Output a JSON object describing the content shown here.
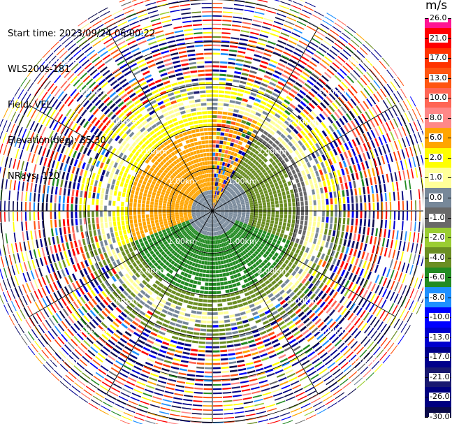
{
  "info": {
    "start_time": "Start time: 2023/09/24 06:00:22",
    "instrument": "WLS200s-181",
    "field": "Field: VEL",
    "elevation": "Elevation(deg): 35.30",
    "nrays": "NRays: 120"
  },
  "chart_data": {
    "type": "heatmap",
    "projection": "polar-ppi",
    "field": "VEL",
    "units": "m/s",
    "nrays": 120,
    "elevation_deg": 35.3,
    "range_rings_km": [
      1.0,
      2.0,
      3.0,
      4.0,
      5.0
    ],
    "range_ring_labels": [
      "1.00km",
      "2.00km",
      "3.00km",
      "4.00km",
      "5.00km"
    ],
    "colorbar": {
      "label": "m/s",
      "vmin": -30.0,
      "vmax": 26.0,
      "ticks": [
        "26.0",
        "21.0",
        "17.0",
        "13.0",
        "10.0",
        "8.0",
        "6.0",
        "2.0",
        "1.0",
        "0.0",
        "-1.0",
        "-2.0",
        "-4.0",
        "-6.0",
        "-8.0",
        "-10.0",
        "-13.0",
        "-17.0",
        "-21.0",
        "-26.0",
        "-30.0"
      ],
      "colors": [
        "#ff1493",
        "#ff0000",
        "#ff3300",
        "#ff5511",
        "#ff6655",
        "#ff8888",
        "#ffa500",
        "#ffff00",
        "#ffff99",
        "#778899",
        "#696969",
        "#9acd32",
        "#6b8e23",
        "#228b22",
        "#1e90ff",
        "#0000ff",
        "#0000cd",
        "#00008b",
        "#191970",
        "#000080",
        "#0b0b4a"
      ]
    },
    "regions": [
      {
        "description": "near-range northwest / west",
        "range_km": [
          0.0,
          2.5
        ],
        "azimuth_deg": [
          240,
          360
        ],
        "velocity_ms": 6.0
      },
      {
        "description": "near-range northeast",
        "range_km": [
          0.0,
          2.5
        ],
        "azimuth_deg": [
          30,
          110
        ],
        "velocity_ms": -2.0
      },
      {
        "description": "near-range south",
        "range_km": [
          0.0,
          2.0
        ],
        "azimuth_deg": [
          110,
          250
        ],
        "velocity_ms": -6.0
      },
      {
        "description": "mid-range ring",
        "range_km": [
          2.0,
          3.2
        ],
        "azimuth_deg": [
          0,
          360
        ],
        "velocity_ms": 2.0
      },
      {
        "description": "outer noise",
        "range_km": [
          3.2,
          5.6
        ],
        "azimuth_deg": [
          0,
          360
        ],
        "velocity_ms": "random"
      }
    ]
  }
}
